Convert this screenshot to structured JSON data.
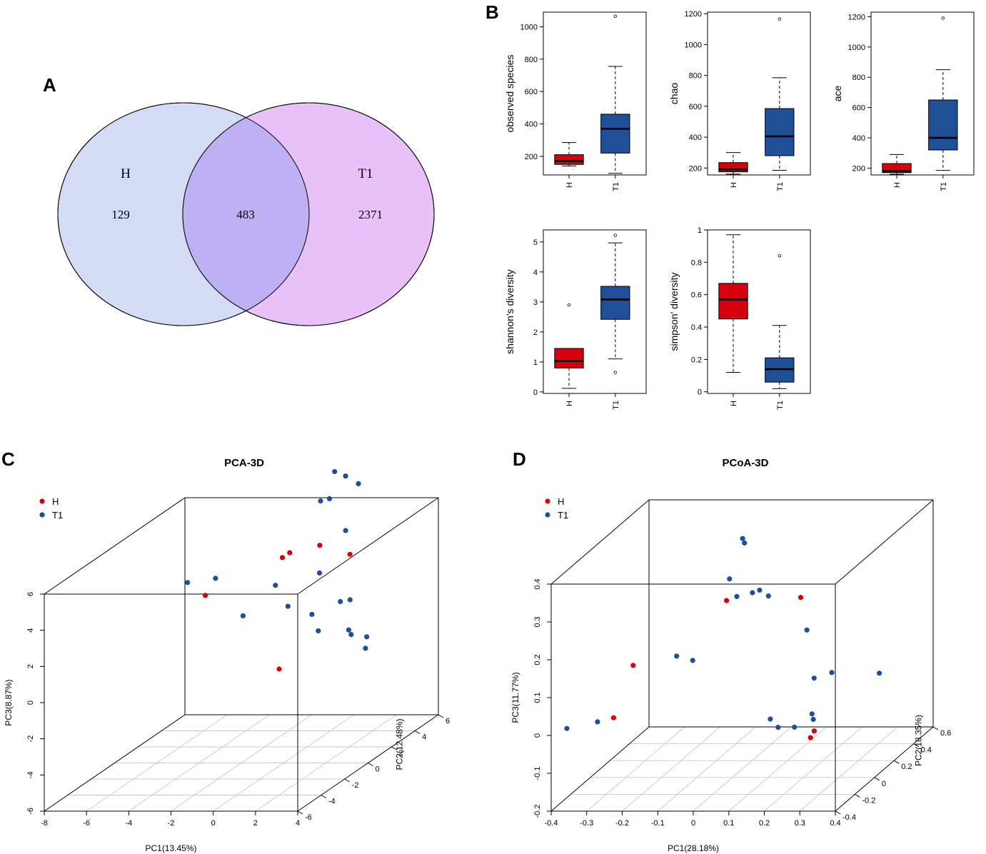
{
  "panels": {
    "A": "A",
    "B": "B",
    "C": "C",
    "D": "D"
  },
  "colors": {
    "H": "#d7000f",
    "T1": "#1f4f97",
    "venn_H": "#d4dcf5",
    "venn_T1": "#e8c1f8",
    "venn_overlap": "#bfb0f4"
  },
  "venn": {
    "left_label": "H",
    "right_label": "T1",
    "left_only": "129",
    "overlap": "483",
    "right_only": "2371"
  },
  "chart_data": [
    {
      "type": "box",
      "panel": "B",
      "ylabel": "observed species",
      "categories": [
        "H",
        "T1"
      ],
      "ylim": [
        85,
        1090
      ],
      "yticks": [
        200,
        400,
        600,
        800,
        1000
      ],
      "boxes": [
        {
          "group": "H",
          "min": 140,
          "q1": 150,
          "median": 170,
          "q3": 210,
          "max": 285,
          "outliers": []
        },
        {
          "group": "T1",
          "min": 95,
          "q1": 220,
          "median": 370,
          "q3": 460,
          "max": 755,
          "outliers": [
            1065
          ]
        }
      ]
    },
    {
      "type": "box",
      "panel": "B",
      "ylabel": "chao",
      "categories": [
        "H",
        "T1"
      ],
      "ylim": [
        155,
        1210
      ],
      "yticks": [
        200,
        400,
        600,
        800,
        1000,
        1200
      ],
      "boxes": [
        {
          "group": "H",
          "min": 160,
          "q1": 175,
          "median": 190,
          "q3": 235,
          "max": 300,
          "outliers": []
        },
        {
          "group": "T1",
          "min": 185,
          "q1": 280,
          "median": 405,
          "q3": 585,
          "max": 785,
          "outliers": [
            1165
          ]
        }
      ]
    },
    {
      "type": "box",
      "panel": "B",
      "ylabel": "ace",
      "categories": [
        "H",
        "T1"
      ],
      "ylim": [
        155,
        1230
      ],
      "yticks": [
        200,
        400,
        600,
        800,
        1000,
        1200
      ],
      "boxes": [
        {
          "group": "H",
          "min": 160,
          "q1": 170,
          "median": 180,
          "q3": 230,
          "max": 290,
          "outliers": []
        },
        {
          "group": "T1",
          "min": 185,
          "q1": 320,
          "median": 400,
          "q3": 650,
          "max": 850,
          "outliers": [
            1190
          ]
        }
      ]
    },
    {
      "type": "box",
      "panel": "B",
      "ylabel": "shannon's diversity",
      "categories": [
        "H",
        "T1"
      ],
      "ylim": [
        -0.05,
        5.4
      ],
      "yticks": [
        0,
        1,
        2,
        3,
        4,
        5
      ],
      "boxes": [
        {
          "group": "H",
          "min": 0.12,
          "q1": 0.8,
          "median": 1.03,
          "q3": 1.45,
          "max": 1.45,
          "outliers": [
            2.9
          ]
        },
        {
          "group": "T1",
          "min": 1.1,
          "q1": 2.42,
          "median": 3.08,
          "q3": 3.52,
          "max": 4.97,
          "outliers": [
            5.22,
            0.65
          ]
        }
      ]
    },
    {
      "type": "box",
      "panel": "B",
      "ylabel": "simpson' diversity",
      "categories": [
        "H",
        "T1"
      ],
      "ylim": [
        -0.01,
        1.0
      ],
      "yticks": [
        0.0,
        0.2,
        0.4,
        0.6,
        0.8,
        1.0
      ],
      "boxes": [
        {
          "group": "H",
          "min": 0.12,
          "q1": 0.45,
          "median": 0.57,
          "q3": 0.67,
          "max": 0.97,
          "outliers": []
        },
        {
          "group": "T1",
          "min": 0.02,
          "q1": 0.06,
          "median": 0.14,
          "q3": 0.21,
          "max": 0.41,
          "outliers": [
            0.84
          ]
        }
      ]
    },
    {
      "type": "scatter3d",
      "panel": "C",
      "title": "PCA-3D",
      "xlabel": "PC1(13.45%)",
      "ylabel": "PC2(12.48%)",
      "zlabel": "PC3(8.87%)",
      "xlim": [
        -8,
        4
      ],
      "ylim": [
        -6,
        6
      ],
      "zlim": [
        -6,
        6
      ],
      "xticks": [
        -8,
        -6,
        -4,
        -2,
        0,
        2,
        4
      ],
      "yticks": [
        -6,
        -4,
        -2,
        0,
        2,
        4,
        6
      ],
      "zticks": [
        -6,
        -4,
        -2,
        0,
        2,
        4,
        6
      ],
      "legend": [
        "H",
        "T1"
      ],
      "points": {
        "H": [
          [
            -2.66,
            5.32,
            3.26
          ],
          [
            -4.99,
            2.32,
            2.23
          ],
          [
            -1.47,
            2.55,
            4.22
          ],
          [
            0.25,
            2.64,
            4.86
          ],
          [
            1.46,
            3.03,
            4.19
          ],
          [
            0.04,
            -0.45,
            -0.61
          ]
        ],
        "T1": [
          [
            -1.11,
            5.92,
            5.98
          ],
          [
            0.17,
            6.08,
            6.74
          ],
          [
            -0.5,
            5.26,
            7.77
          ],
          [
            -0.2,
            5.65,
            7.35
          ],
          [
            -0.86,
            4.71,
            6.39
          ],
          [
            -5.19,
            1.16,
            3.46
          ],
          [
            -4.43,
            2.18,
            3.24
          ],
          [
            -2.12,
            3.13,
            2.43
          ],
          [
            1.23,
            3.08,
            5.48
          ],
          [
            -3.15,
            2.22,
            1.15
          ],
          [
            0.36,
            2.42,
            3.43
          ],
          [
            -0.93,
            2.05,
            1.75
          ],
          [
            1.34,
            2.43,
            1.84
          ],
          [
            0.21,
            2.04,
            1.31
          ],
          [
            2.05,
            1.98,
            2.14
          ],
          [
            1.54,
            0.19,
            1.22
          ],
          [
            2.58,
            0.91,
            0.95
          ],
          [
            3.67,
            0.48,
            0.76
          ],
          [
            3.06,
            0.25,
            0.99
          ],
          [
            3.69,
            0.34,
            0.19
          ]
        ]
      }
    },
    {
      "type": "scatter3d",
      "panel": "D",
      "title": "PCoA-3D",
      "xlabel": "PC1(28.18%)",
      "ylabel": "PC2(18.35%)",
      "zlabel": "PC3(11.77%)",
      "xlim": [
        -0.4,
        0.4
      ],
      "ylim": [
        -0.4,
        0.6
      ],
      "zlim": [
        -0.2,
        0.4
      ],
      "xticks": [
        -0.4,
        -0.3,
        -0.2,
        -0.1,
        0.0,
        0.1,
        0.2,
        0.3,
        0.4
      ],
      "yticks": [
        -0.4,
        -0.2,
        0.0,
        0.2,
        0.4,
        0.6
      ],
      "zticks": [
        -0.2,
        -0.1,
        0.0,
        0.1,
        0.2,
        0.3,
        0.4
      ],
      "legend": [
        "H",
        "T1"
      ],
      "points": {
        "H": [
          [
            -0.281,
            -0.194,
            0.001
          ],
          [
            -0.292,
            0.046,
            0.086
          ],
          [
            -0.049,
            0.118,
            0.241
          ],
          [
            0.199,
            -0.024,
            0.281
          ],
          [
            0.317,
            -0.315,
            -0.007
          ],
          [
            0.294,
            -0.269,
            -0.035
          ]
        ],
        "T1": [
          [
            -0.334,
            -0.166,
            -0.016
          ],
          [
            -0.396,
            -0.254,
            -0.014
          ],
          [
            -0.195,
            0.138,
            0.09
          ],
          [
            -0.195,
            0.302,
            0.042
          ],
          [
            -0.056,
            0.174,
            0.286
          ],
          [
            0.021,
            0.028,
            0.425
          ],
          [
            0.032,
            0.007,
            0.418
          ],
          [
            0.031,
            -0.067,
            0.293
          ],
          [
            0.076,
            -0.071,
            0.304
          ],
          [
            0.094,
            -0.063,
            0.309
          ],
          [
            0.123,
            -0.078,
            0.297
          ],
          [
            0.241,
            -0.114,
            0.215
          ],
          [
            0.258,
            -0.101,
            0.085
          ],
          [
            0.282,
            -0.008,
            0.079
          ],
          [
            0.365,
            0.177,
            0.036
          ],
          [
            0.178,
            -0.259,
            0.012
          ],
          [
            0.212,
            -0.303,
            -0.0
          ],
          [
            0.271,
            -0.35,
            0.011
          ],
          [
            0.32,
            -0.335,
            0.028
          ],
          [
            0.312,
            -0.319,
            0.039
          ]
        ]
      }
    }
  ]
}
